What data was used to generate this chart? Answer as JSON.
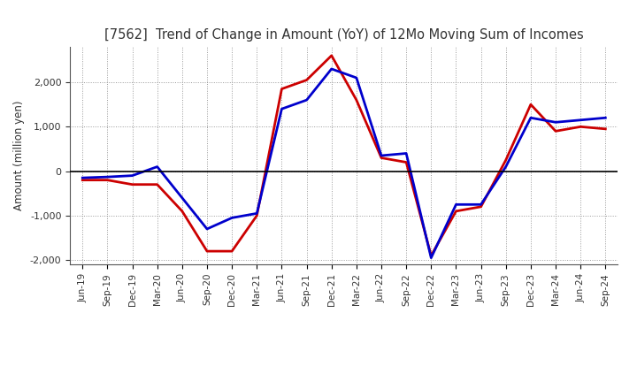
{
  "title": "[7562]  Trend of Change in Amount (YoY) of 12Mo Moving Sum of Incomes",
  "ylabel": "Amount (million yen)",
  "x_labels": [
    "Jun-19",
    "Sep-19",
    "Dec-19",
    "Mar-20",
    "Jun-20",
    "Sep-20",
    "Dec-20",
    "Mar-21",
    "Jun-21",
    "Sep-21",
    "Dec-21",
    "Mar-22",
    "Jun-22",
    "Sep-22",
    "Dec-22",
    "Mar-23",
    "Jun-23",
    "Sep-23",
    "Dec-23",
    "Mar-24",
    "Jun-24",
    "Sep-24"
  ],
  "ordinary_income": [
    -150,
    -130,
    -100,
    100,
    -600,
    -1300,
    -1050,
    -950,
    1400,
    1600,
    2300,
    2100,
    350,
    400,
    -1950,
    -750,
    -750,
    100,
    1200,
    1100,
    1150,
    1200
  ],
  "net_income": [
    -200,
    -200,
    -300,
    -300,
    -900,
    -1800,
    -1800,
    -1000,
    1850,
    2050,
    2600,
    1600,
    300,
    200,
    -1900,
    -900,
    -800,
    250,
    1500,
    900,
    1000,
    950
  ],
  "ordinary_color": "#0000cc",
  "net_color": "#cc0000",
  "line_width": 2.0,
  "ylim": [
    -2100,
    2800
  ],
  "yticks": [
    -2000,
    -1000,
    0,
    1000,
    2000
  ],
  "background_color": "#ffffff",
  "grid_color": "#999999",
  "title_color": "#333333"
}
